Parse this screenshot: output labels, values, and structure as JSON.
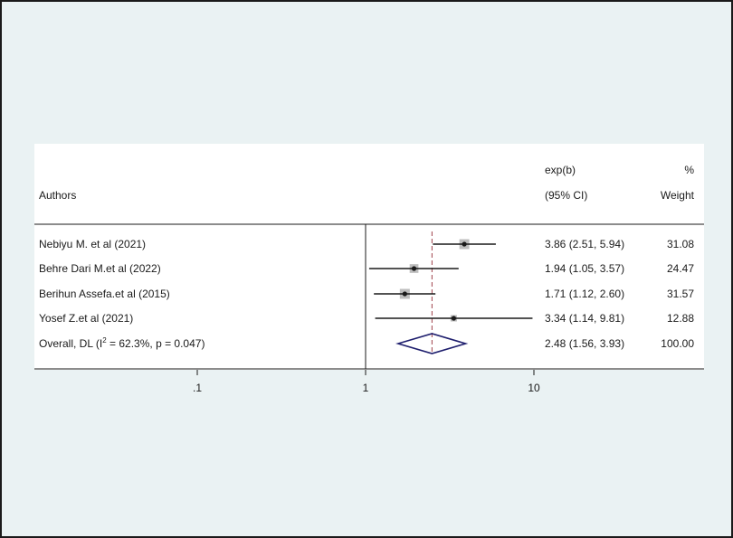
{
  "chart_data": {
    "type": "forest",
    "columns": {
      "authors": "Authors",
      "effect_line1": "exp(b)",
      "effect_line2": "(95% CI)",
      "weight_line1": "%",
      "weight_line2": "Weight"
    },
    "studies": [
      {
        "label": "Nebiyu M. et al (2021)",
        "estimate": 3.86,
        "lower": 2.51,
        "upper": 5.94,
        "ci_text": "3.86 (2.51, 5.94)",
        "weight": 31.08,
        "weight_text": "31.08"
      },
      {
        "label": "Behre Dari M.et al (2022)",
        "estimate": 1.94,
        "lower": 1.05,
        "upper": 3.57,
        "ci_text": "1.94 (1.05, 3.57)",
        "weight": 24.47,
        "weight_text": "24.47"
      },
      {
        "label": "Berihun Assefa.et al (2015)",
        "estimate": 1.71,
        "lower": 1.12,
        "upper": 2.6,
        "ci_text": "1.71 (1.12, 2.60)",
        "weight": 31.57,
        "weight_text": "31.57"
      },
      {
        "label": "Yosef Z.et al (2021)",
        "estimate": 3.34,
        "lower": 1.14,
        "upper": 9.81,
        "ci_text": "3.34 (1.14, 9.81)",
        "weight": 12.88,
        "weight_text": "12.88"
      }
    ],
    "overall": {
      "label_prefix": "Overall, DL (I",
      "label_sup": "2",
      "label_suffix": " = 62.3%, p = 0.047)",
      "estimate": 2.48,
      "lower": 1.56,
      "upper": 3.93,
      "ci_text": "2.48 (1.56, 3.93)",
      "weight_text": "100.00"
    },
    "x_scale": "log",
    "null_value": 1,
    "x_ticks": [
      {
        "value": 0.1,
        "label": ".1"
      },
      {
        "value": 1,
        "label": "1"
      },
      {
        "value": 10,
        "label": "10"
      }
    ],
    "colors": {
      "background": "#eaf2f3",
      "plot_background": "#ffffff",
      "box": "#bdbdbd",
      "diamond": "#1f1f6e",
      "reference_line": "#a0404a",
      "ink": "#1a1a1a"
    }
  }
}
